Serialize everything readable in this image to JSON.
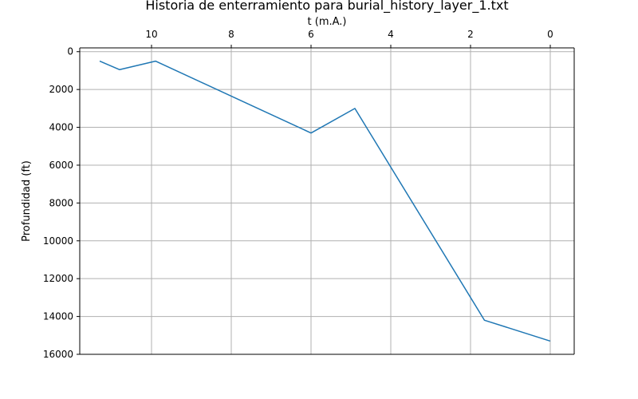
{
  "chart_data": {
    "type": "line",
    "title": "Historia de enterramiento para burial_history_layer_1.txt",
    "xlabel": "t (m.A.)",
    "ylabel": "Profundidad (ft)",
    "xlim": [
      11.8,
      -0.6
    ],
    "ylim": [
      16000,
      -200
    ],
    "x_ticks": [
      10,
      8,
      6,
      4,
      2,
      0
    ],
    "y_ticks": [
      0,
      2000,
      4000,
      6000,
      8000,
      10000,
      12000,
      14000,
      16000
    ],
    "x_axis_position": "top",
    "y_axis_inverted": true,
    "grid": true,
    "line_color": "#1f77b4",
    "series": [
      {
        "x": [
          11.3,
          10.8,
          9.9,
          6.0,
          4.9,
          1.65,
          0.0
        ],
        "y": [
          500,
          950,
          500,
          4300,
          3000,
          14200,
          15300
        ]
      }
    ]
  }
}
